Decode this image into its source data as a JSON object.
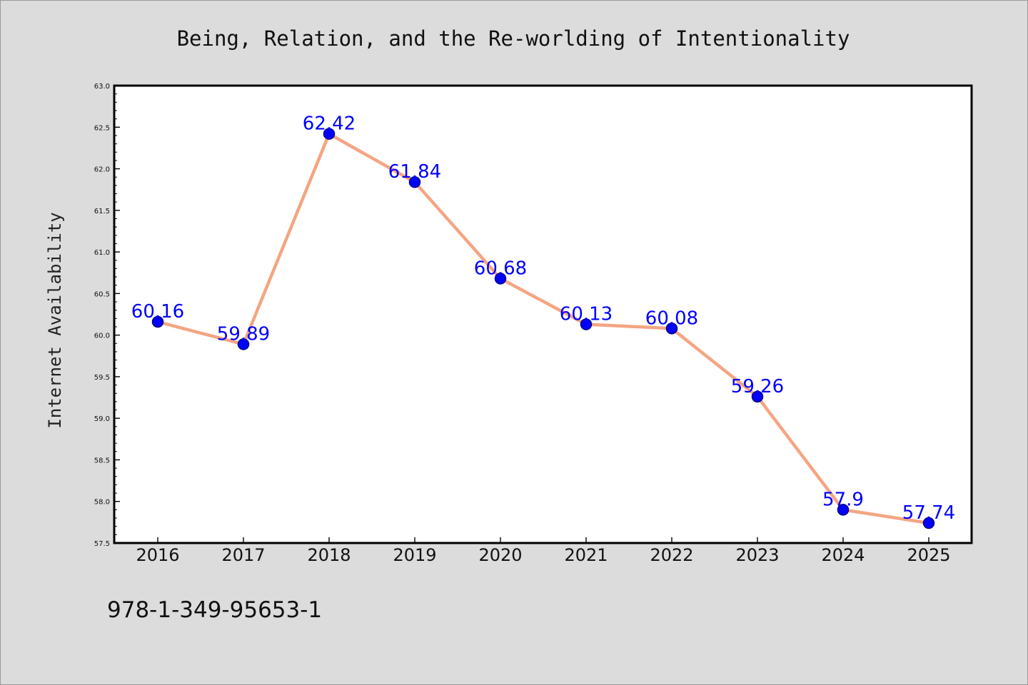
{
  "colors": {
    "background": "#dcdcdc",
    "plot_background": "#ffffff",
    "axis": "#000000",
    "line": "#f4a582",
    "marker": "#0000ff",
    "marker_edge": "#000080",
    "data_label": "#0000ff"
  },
  "footer": {
    "isbn": "978-1-349-95653-1"
  },
  "chart_data": {
    "type": "line",
    "title": "Being, Relation, and the Re-worlding of Intentionality",
    "xlabel": "",
    "ylabel": "Internet Availability",
    "ylim": [
      57.5,
      63.0
    ],
    "yticks": [
      "57.5",
      "58.0",
      "58.5",
      "59.0",
      "59.5",
      "60.0",
      "60.5",
      "61.0",
      "61.5",
      "62.0",
      "62.5",
      "63.0"
    ],
    "grid": false,
    "legend": "none",
    "categories": [
      "2016",
      "2017",
      "2018",
      "2019",
      "2020",
      "2021",
      "2022",
      "2023",
      "2024",
      "2025"
    ],
    "series": [
      {
        "values": [
          60.16,
          59.89,
          62.42,
          61.84,
          60.68,
          60.13,
          60.08,
          59.26,
          57.9,
          57.74
        ],
        "labels": [
          "60.16",
          "59.89",
          "62.42",
          "61.84",
          "60.68",
          "60.13",
          "60.08",
          "59.26",
          "57.9",
          "57.74"
        ]
      }
    ]
  }
}
